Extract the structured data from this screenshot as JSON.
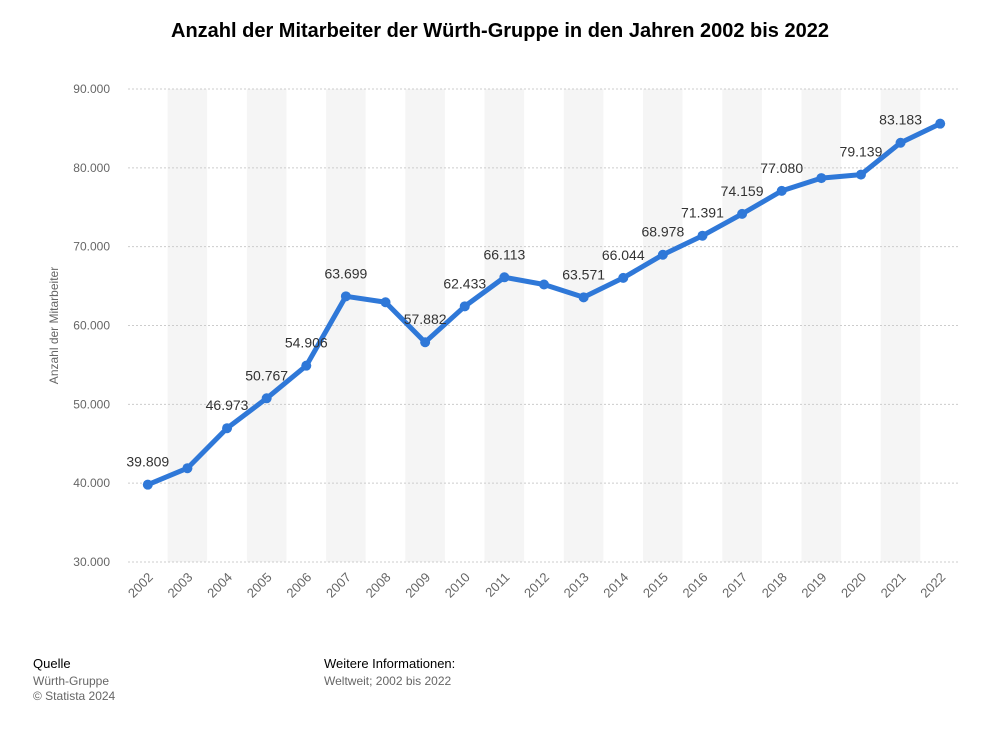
{
  "title": "Anzahl der Mitarbeiter der Würth-Gruppe in den Jahren 2002 bis 2022",
  "footer": {
    "source_heading": "Quelle",
    "source_name": "Würth-Gruppe",
    "copyright": "© Statista 2024",
    "info_heading": "Weitere Informationen:",
    "info_text": "Weltweit; 2002 bis 2022"
  },
  "colors": {
    "line": "#2f78d8",
    "band": "#f5f5f5",
    "grid": "#cccccc",
    "axis_text": "#666666",
    "label_text": "#333333"
  },
  "chart_data": {
    "type": "line",
    "title": "Anzahl der Mitarbeiter der Würth-Gruppe in den Jahren 2002 bis 2022",
    "xlabel": "",
    "ylabel": "Anzahl der Mitarbeiter",
    "ylim": [
      30000,
      90000
    ],
    "y_ticks": [
      30000,
      40000,
      50000,
      60000,
      70000,
      80000,
      90000
    ],
    "y_tick_labels": [
      "30.000",
      "40.000",
      "50.000",
      "60.000",
      "70.000",
      "80.000",
      "90.000"
    ],
    "grid": true,
    "legend": "none",
    "categories": [
      "2002",
      "2003",
      "2004",
      "2005",
      "2006",
      "2007",
      "2008",
      "2009",
      "2010",
      "2011",
      "2012",
      "2013",
      "2014",
      "2015",
      "2016",
      "2017",
      "2018",
      "2019",
      "2020",
      "2021",
      "2022"
    ],
    "series": [
      {
        "values": [
          39809,
          41900,
          46973,
          50767,
          54906,
          63699,
          62950,
          57882,
          62433,
          66113,
          65200,
          63571,
          66044,
          68978,
          71391,
          74159,
          77080,
          78700,
          79139,
          83183,
          85600
        ],
        "labels": [
          "39.809",
          "",
          "46.973",
          "50.767",
          "54.906",
          "63.699",
          "",
          "57.882",
          "62.433",
          "66.113",
          "",
          "63.571",
          "66.044",
          "68.978",
          "71.391",
          "74.159",
          "77.080",
          "",
          "79.139",
          "83.183",
          ""
        ]
      }
    ]
  }
}
